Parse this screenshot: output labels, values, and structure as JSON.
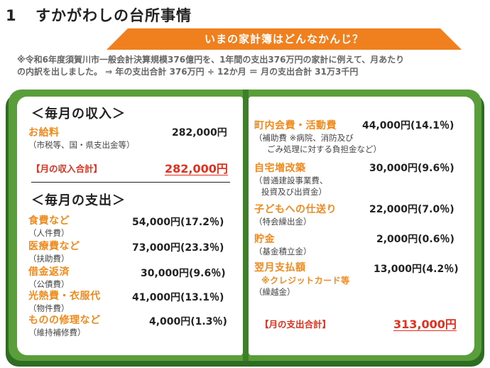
{
  "header": {
    "number": "1",
    "title": "すかがわしの台所事情"
  },
  "banner": {
    "text": "いまの家計簿はどんなかんじ？",
    "color": "#f07f1e"
  },
  "notes": {
    "line1": "※令和6年度須賀川市一般会計決算規模376億円を、1年間の支出376万円の家計に例えて、月あたり",
    "line2": "の内訳を出しました。 ⇒  年の支出合計 376万円  ÷  12か月  ＝  月の支出合計 31万3千円"
  },
  "colors": {
    "board": "#5a9e3c",
    "board_dark": "#2f6e22",
    "label": "#f08a1c",
    "total": "#e0301e"
  },
  "income": {
    "heading": "＜毎月の収入＞",
    "items": [
      {
        "label": "お給料",
        "sub": "（市税等、国・県支出金等）",
        "amount": "282,000円"
      }
    ],
    "total_label": "【月の収入合計】",
    "total_amount": "282,000円"
  },
  "expense": {
    "heading": "＜毎月の支出＞",
    "left_items": [
      {
        "label": "食費など",
        "sub": "（人件費）",
        "amount": "54,000円(17.2％)"
      },
      {
        "label": "医療費など",
        "sub": "（扶助費）",
        "amount": "73,000円(23.3％)"
      },
      {
        "label": "借金返済",
        "sub": "（公債費）",
        "amount": "30,000円(9.6％)"
      },
      {
        "label": "光熱費・衣服代",
        "sub": "（物件費）",
        "amount": "41,000円(13.1％)"
      },
      {
        "label": "ものの修理など",
        "sub": "（維持補修費）",
        "amount": "4,000円(1.3％)"
      }
    ],
    "right_items": [
      {
        "label": "町内会費・活動費",
        "sub1": "（補助費 ※病院、消防及び",
        "sub2": "ごみ処理に対する負担金など）",
        "amount": "44,000円(14.1％)"
      },
      {
        "label": "自宅増改築",
        "sub1": "（普通建設事業費、",
        "sub2": "投資及び出資金）",
        "amount": "30,000円(9.6％)"
      },
      {
        "label": "子どもへの仕送り",
        "sub1": "（特会繰出金）",
        "amount": "22,000円(7.0％)"
      },
      {
        "label": "貯金",
        "sub1": "（基金積立金）",
        "amount": "2,000円(0.6％)"
      },
      {
        "label": "翌月支払額",
        "note": "※クレジットカード等",
        "sub1": "（繰越金）",
        "amount": "13,000円(4.2％)"
      }
    ],
    "total_label": "【月の支出合計】",
    "total_amount": "313,000円"
  }
}
